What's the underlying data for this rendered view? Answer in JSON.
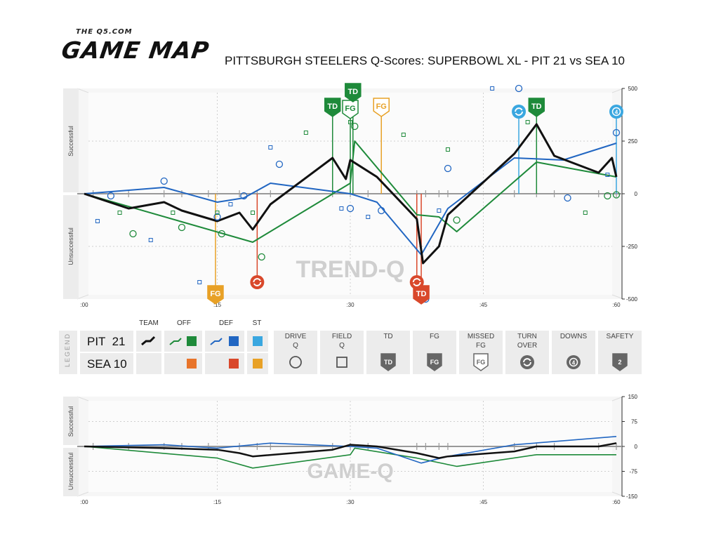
{
  "brand": {
    "site": "THE Q5.COM",
    "name": "GAME MAP"
  },
  "title": "PITTSBURGH STEELERS Q-Scores: SUPERBOWL XL - PIT 21 vs SEA 10",
  "colors": {
    "team": "#111111",
    "pit_off": "#1e8a3a",
    "pit_def": "#2166c2",
    "pit_st": "#3aa7e0",
    "sea_off": "#e8742a",
    "sea_def": "#d9482b",
    "sea_st": "#e8a126"
  },
  "chart_data": [
    {
      "type": "line",
      "name": "Trend-Q",
      "watermark": "TREND-Q",
      "ylabel_top": "Successful",
      "ylabel_bottom": "Unsuccessful",
      "ylim": [
        -500,
        500
      ],
      "yticks": [
        "500",
        "250",
        "0",
        "-250",
        "-500"
      ],
      "xlim": [
        0,
        60
      ],
      "xticks": [
        ":00",
        ":15",
        ":30",
        ":45",
        ":60"
      ],
      "series": [
        {
          "key": "team",
          "x": [
            0,
            5,
            9,
            11,
            15,
            17.5,
            19,
            21,
            28,
            29.5,
            30,
            33,
            37.5,
            38.2,
            40,
            41,
            48.5,
            51,
            53,
            58,
            59.5,
            60
          ],
          "y": [
            0,
            -70,
            -40,
            -80,
            -130,
            -90,
            -170,
            -50,
            170,
            70,
            160,
            80,
            -120,
            -330,
            -250,
            -100,
            190,
            330,
            180,
            100,
            170,
            80
          ]
        },
        {
          "key": "off",
          "x": [
            0,
            19,
            30,
            30.5,
            37.5,
            40,
            42,
            51,
            60
          ],
          "y": [
            0,
            -230,
            50,
            250,
            -100,
            -110,
            -180,
            150,
            80
          ]
        },
        {
          "key": "def",
          "x": [
            0,
            9,
            15,
            18,
            21,
            30,
            33,
            38,
            41,
            48.5,
            54,
            60
          ],
          "y": [
            0,
            30,
            -40,
            -20,
            50,
            0,
            -40,
            -290,
            -70,
            170,
            160,
            240
          ]
        }
      ],
      "scoring_markers": [
        {
          "label": "TD",
          "team": "PIT",
          "x": 28,
          "y": 410
        },
        {
          "label": "FG",
          "team": "PIT",
          "x": 30,
          "y": 400
        },
        {
          "label": "TD",
          "team": "PIT",
          "x": 30.3,
          "y": 480
        },
        {
          "label": "FG",
          "team": "SEA",
          "x": 33.5,
          "y": 410
        },
        {
          "label": "TD",
          "team": "PIT",
          "x": 51,
          "y": 410
        },
        {
          "label": "FG",
          "team": "SEA",
          "x": 14.8,
          "y": -480
        },
        {
          "label": "TD",
          "team": "SEA",
          "x": 38,
          "y": -480
        }
      ],
      "turnover_markers": [
        {
          "kind": "turnover",
          "team": "SEA",
          "x": 19.5,
          "y": -420
        },
        {
          "kind": "turnover",
          "team": "SEA",
          "x": 37.5,
          "y": -420
        },
        {
          "kind": "turnover",
          "team": "PIT",
          "x": 49,
          "y": 390
        },
        {
          "kind": "downs",
          "team": "PIT",
          "x": 60,
          "y": 390
        }
      ],
      "drive_q": [
        {
          "x": 3,
          "y": -10,
          "team": "PIT",
          "unit": "def"
        },
        {
          "x": 5.5,
          "y": -190,
          "team": "PIT",
          "unit": "off"
        },
        {
          "x": 9,
          "y": 60,
          "team": "PIT",
          "unit": "def"
        },
        {
          "x": 11,
          "y": -160,
          "team": "PIT",
          "unit": "off"
        },
        {
          "x": 15,
          "y": -110,
          "team": "PIT",
          "unit": "def"
        },
        {
          "x": 15.5,
          "y": -190,
          "team": "PIT",
          "unit": "off"
        },
        {
          "x": 18,
          "y": -10,
          "team": "PIT",
          "unit": "def"
        },
        {
          "x": 20,
          "y": -300,
          "team": "PIT",
          "unit": "off"
        },
        {
          "x": 22,
          "y": 140,
          "team": "PIT",
          "unit": "def"
        },
        {
          "x": 28,
          "y": 400,
          "team": "PIT",
          "unit": "off"
        },
        {
          "x": 30,
          "y": -70,
          "team": "PIT",
          "unit": "def"
        },
        {
          "x": 30.5,
          "y": 320,
          "team": "PIT",
          "unit": "off"
        },
        {
          "x": 33.5,
          "y": -80,
          "team": "PIT",
          "unit": "def"
        },
        {
          "x": 38.5,
          "y": -500,
          "team": "PIT",
          "unit": "def"
        },
        {
          "x": 41,
          "y": 120,
          "team": "PIT",
          "unit": "def"
        },
        {
          "x": 42,
          "y": -125,
          "team": "PIT",
          "unit": "off"
        },
        {
          "x": 49,
          "y": 500,
          "team": "PIT",
          "unit": "def"
        },
        {
          "x": 54.5,
          "y": -20,
          "team": "PIT",
          "unit": "def"
        },
        {
          "x": 59,
          "y": -10,
          "team": "PIT",
          "unit": "off"
        },
        {
          "x": 60,
          "y": 290,
          "team": "PIT",
          "unit": "def"
        },
        {
          "x": 60,
          "y": -5,
          "team": "PIT",
          "unit": "off"
        }
      ],
      "field_q": [
        {
          "x": 1.5,
          "y": -130,
          "team": "PIT",
          "unit": "def"
        },
        {
          "x": 4,
          "y": -90,
          "team": "PIT",
          "unit": "off"
        },
        {
          "x": 7.5,
          "y": -220,
          "team": "PIT",
          "unit": "def"
        },
        {
          "x": 10,
          "y": -90,
          "team": "PIT",
          "unit": "off"
        },
        {
          "x": 13,
          "y": -420,
          "team": "PIT",
          "unit": "def"
        },
        {
          "x": 15,
          "y": -90,
          "team": "PIT",
          "unit": "off"
        },
        {
          "x": 16.5,
          "y": -50,
          "team": "PIT",
          "unit": "def"
        },
        {
          "x": 19,
          "y": -90,
          "team": "PIT",
          "unit": "off"
        },
        {
          "x": 21,
          "y": 220,
          "team": "PIT",
          "unit": "def"
        },
        {
          "x": 25,
          "y": 290,
          "team": "PIT",
          "unit": "off"
        },
        {
          "x": 29,
          "y": -70,
          "team": "PIT",
          "unit": "def"
        },
        {
          "x": 30,
          "y": 340,
          "team": "PIT",
          "unit": "off"
        },
        {
          "x": 32,
          "y": -110,
          "team": "PIT",
          "unit": "def"
        },
        {
          "x": 36,
          "y": 280,
          "team": "PIT",
          "unit": "off"
        },
        {
          "x": 40,
          "y": -80,
          "team": "PIT",
          "unit": "def"
        },
        {
          "x": 41,
          "y": 210,
          "team": "PIT",
          "unit": "off"
        },
        {
          "x": 46,
          "y": 500,
          "team": "PIT",
          "unit": "def"
        },
        {
          "x": 50,
          "y": 340,
          "team": "PIT",
          "unit": "off"
        },
        {
          "x": 56.5,
          "y": -90,
          "team": "PIT",
          "unit": "off"
        },
        {
          "x": 59,
          "y": 90,
          "team": "PIT",
          "unit": "def"
        }
      ],
      "drive_ticks": [
        1,
        5,
        9,
        11,
        14,
        17.5,
        19.5,
        21,
        28,
        30,
        32,
        37.5,
        38.5,
        40,
        41,
        48.5,
        51,
        53,
        58,
        60
      ]
    },
    {
      "type": "line",
      "name": "Game-Q",
      "watermark": "GAME-Q",
      "ylabel_top": "Successful",
      "ylabel_bottom": "Unsuccessful",
      "ylim": [
        -150,
        150
      ],
      "yticks": [
        "150",
        "75",
        "0",
        "-75",
        "-150"
      ],
      "xlim": [
        0,
        60
      ],
      "xticks": [
        ":00",
        ":15",
        ":30",
        ":45",
        ":60"
      ],
      "series": [
        {
          "key": "team",
          "x": [
            0,
            9,
            15,
            17.5,
            19,
            28,
            30,
            33,
            37.5,
            40,
            41,
            48.5,
            51,
            58,
            60
          ],
          "y": [
            0,
            -5,
            -10,
            -20,
            -30,
            -10,
            5,
            0,
            -20,
            -35,
            -30,
            -15,
            0,
            0,
            10
          ]
        },
        {
          "key": "off",
          "x": [
            0,
            15,
            19,
            30,
            30.5,
            37.5,
            42,
            51,
            60
          ],
          "y": [
            0,
            -35,
            -65,
            -25,
            -5,
            -35,
            -60,
            -25,
            -25
          ]
        },
        {
          "key": "def",
          "x": [
            0,
            9,
            15,
            21,
            30,
            33,
            38,
            41,
            48.5,
            60
          ],
          "y": [
            0,
            5,
            -5,
            10,
            0,
            -5,
            -50,
            -30,
            5,
            30
          ]
        }
      ],
      "drive_ticks": [
        1,
        5,
        9,
        11,
        14,
        17.5,
        19.5,
        21,
        28,
        30,
        32,
        37.5,
        38.5,
        40,
        41,
        48.5,
        51,
        53,
        58,
        60
      ]
    }
  ],
  "legend": {
    "side_label": "LEGEND",
    "headers": {
      "team": "TEAM",
      "off": "OFF",
      "def": "DEF",
      "st": "ST"
    },
    "teams": [
      "PIT  21",
      "SEA 10"
    ],
    "items": [
      {
        "label": "DRIVE\nQ",
        "icon": "circle-icon"
      },
      {
        "label": "FIELD\nQ",
        "icon": "square-icon"
      },
      {
        "label": "TD",
        "icon": "td-shield-icon",
        "glyph": "TD"
      },
      {
        "label": "FG",
        "icon": "fg-shield-icon",
        "glyph": "FG"
      },
      {
        "label": "MISSED\nFG",
        "icon": "missed-fg-shield-icon",
        "glyph": "FG"
      },
      {
        "label": "TURN\nOVER",
        "icon": "turnover-icon"
      },
      {
        "label": "DOWNS",
        "icon": "downs-icon",
        "glyph": "4"
      },
      {
        "label": "SAFETY",
        "icon": "safety-shield-icon",
        "glyph": "2"
      }
    ]
  }
}
